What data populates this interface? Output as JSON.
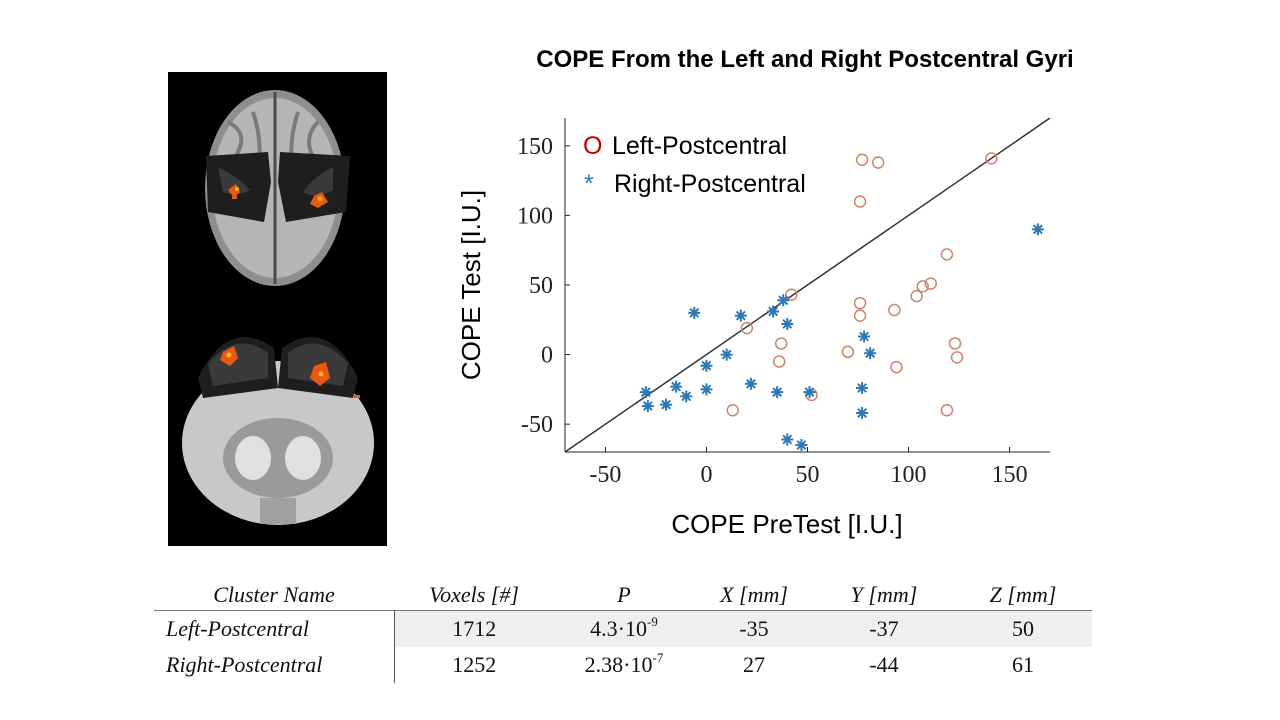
{
  "page": {
    "title": "COPE From the Left and Right Postcentral Gyri"
  },
  "chart_data": {
    "type": "scatter",
    "title": "COPE From the Left and Right Postcentral Gyri",
    "xlabel": "COPE PreTest [I.U.]",
    "ylabel": "COPE Test [I.U.]",
    "xlim": [
      -70,
      170
    ],
    "ylim": [
      -70,
      170
    ],
    "xticks": [
      -50,
      0,
      50,
      100,
      150
    ],
    "yticks": [
      -50,
      0,
      50,
      100,
      150
    ],
    "identity_line": true,
    "legend": {
      "position": "top-left",
      "entries": [
        {
          "marker": "O",
          "label": "Left-Postcentral"
        },
        {
          "marker": "*",
          "label": "Right-Postcentral"
        }
      ]
    },
    "colors": {
      "left": "#c9866a",
      "left_legend": "#c00000",
      "right": "#2e78b4",
      "line": "#333333"
    },
    "series": [
      {
        "name": "Left-Postcentral",
        "marker": "circle",
        "points": [
          [
            77,
            140
          ],
          [
            85,
            138
          ],
          [
            141,
            141
          ],
          [
            76,
            110
          ],
          [
            119,
            72
          ],
          [
            111,
            51
          ],
          [
            107,
            49
          ],
          [
            104,
            42
          ],
          [
            42,
            43
          ],
          [
            20,
            19
          ],
          [
            76,
            37
          ],
          [
            76,
            28
          ],
          [
            93,
            32
          ],
          [
            37,
            8
          ],
          [
            123,
            8
          ],
          [
            124,
            -2
          ],
          [
            36,
            -5
          ],
          [
            70,
            2
          ],
          [
            94,
            -9
          ],
          [
            13,
            -40
          ],
          [
            52,
            -29
          ],
          [
            119,
            -40
          ]
        ]
      },
      {
        "name": "Right-Postcentral",
        "marker": "asterisk",
        "points": [
          [
            164,
            90
          ],
          [
            -6,
            30
          ],
          [
            17,
            28
          ],
          [
            33,
            31
          ],
          [
            38,
            39
          ],
          [
            40,
            22
          ],
          [
            78,
            13
          ],
          [
            81,
            1
          ],
          [
            10,
            0
          ],
          [
            0,
            -8
          ],
          [
            -15,
            -23
          ],
          [
            -10,
            -30
          ],
          [
            -20,
            -36
          ],
          [
            -30,
            -27
          ],
          [
            -29,
            -37
          ],
          [
            0,
            -25
          ],
          [
            22,
            -21
          ],
          [
            35,
            -27
          ],
          [
            51,
            -27
          ],
          [
            77,
            -24
          ],
          [
            77,
            -42
          ],
          [
            40,
            -61
          ],
          [
            47,
            -65
          ]
        ]
      }
    ]
  },
  "table": {
    "headers": [
      "Cluster Name",
      "Voxels [#]",
      "P",
      "X [mm]",
      "Y [mm]",
      "Z [mm]"
    ],
    "rows": [
      {
        "name": "Left-Postcentral",
        "voxels": "1712",
        "p_base": "4.3·10",
        "p_exp": "-9",
        "x": "-35",
        "y": "-37",
        "z": "50"
      },
      {
        "name": "Right-Postcentral",
        "voxels": "1252",
        "p_base": "2.38·10",
        "p_exp": "-7",
        "x": "27",
        "y": "-44",
        "z": "61"
      }
    ]
  }
}
